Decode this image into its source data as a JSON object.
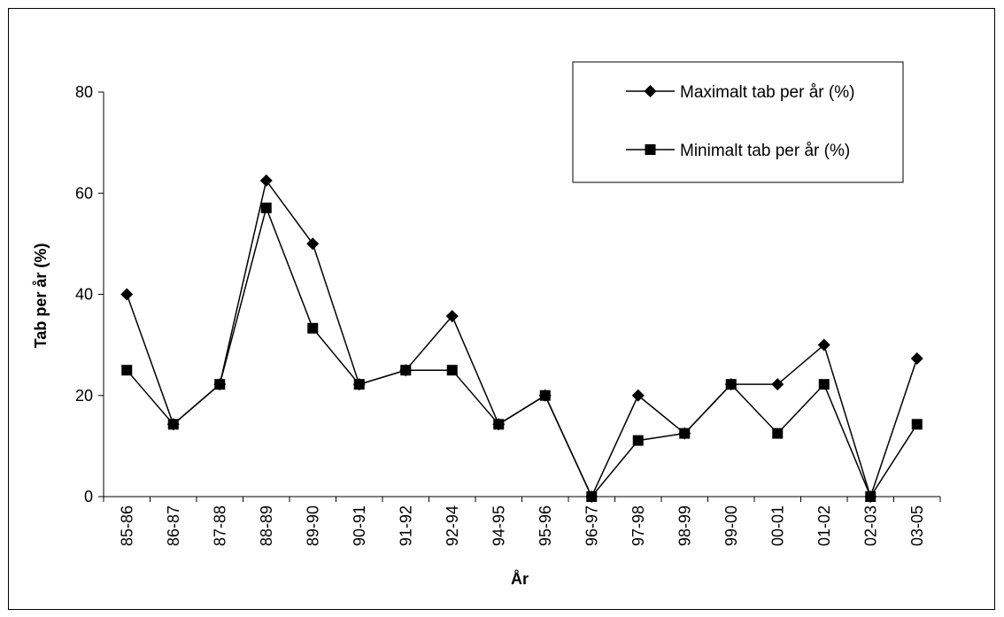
{
  "chart_data": {
    "type": "line",
    "title": "",
    "xlabel": "År",
    "ylabel": "Tab per år (%)",
    "ylim": [
      0,
      80
    ],
    "yticks": [
      0,
      20,
      40,
      60,
      80
    ],
    "grid": false,
    "legend_position": "top-right",
    "categories": [
      "85-86",
      "86-87",
      "87-88",
      "88-89",
      "89-90",
      "90-91",
      "91-92",
      "92-94",
      "94-95",
      "95-96",
      "96-97",
      "97-98",
      "98-99",
      "99-00",
      "00-01",
      "01-02",
      "02-03",
      "03-05"
    ],
    "series": [
      {
        "name": "Maximalt tab per år (%)",
        "marker": "diamond",
        "color": "#000000",
        "values": [
          40,
          14.3,
          22.2,
          62.5,
          50,
          22.2,
          25,
          35.7,
          14.3,
          20,
          0,
          20,
          12.5,
          22.2,
          22.2,
          30,
          0,
          27.3
        ]
      },
      {
        "name": "Minimalt tab per år (%)",
        "marker": "square",
        "color": "#000000",
        "values": [
          25,
          14.3,
          22.2,
          57.1,
          33.3,
          22.2,
          25,
          25,
          14.3,
          20,
          0,
          11.1,
          12.5,
          22.2,
          12.5,
          22.2,
          0,
          14.3
        ]
      }
    ]
  }
}
